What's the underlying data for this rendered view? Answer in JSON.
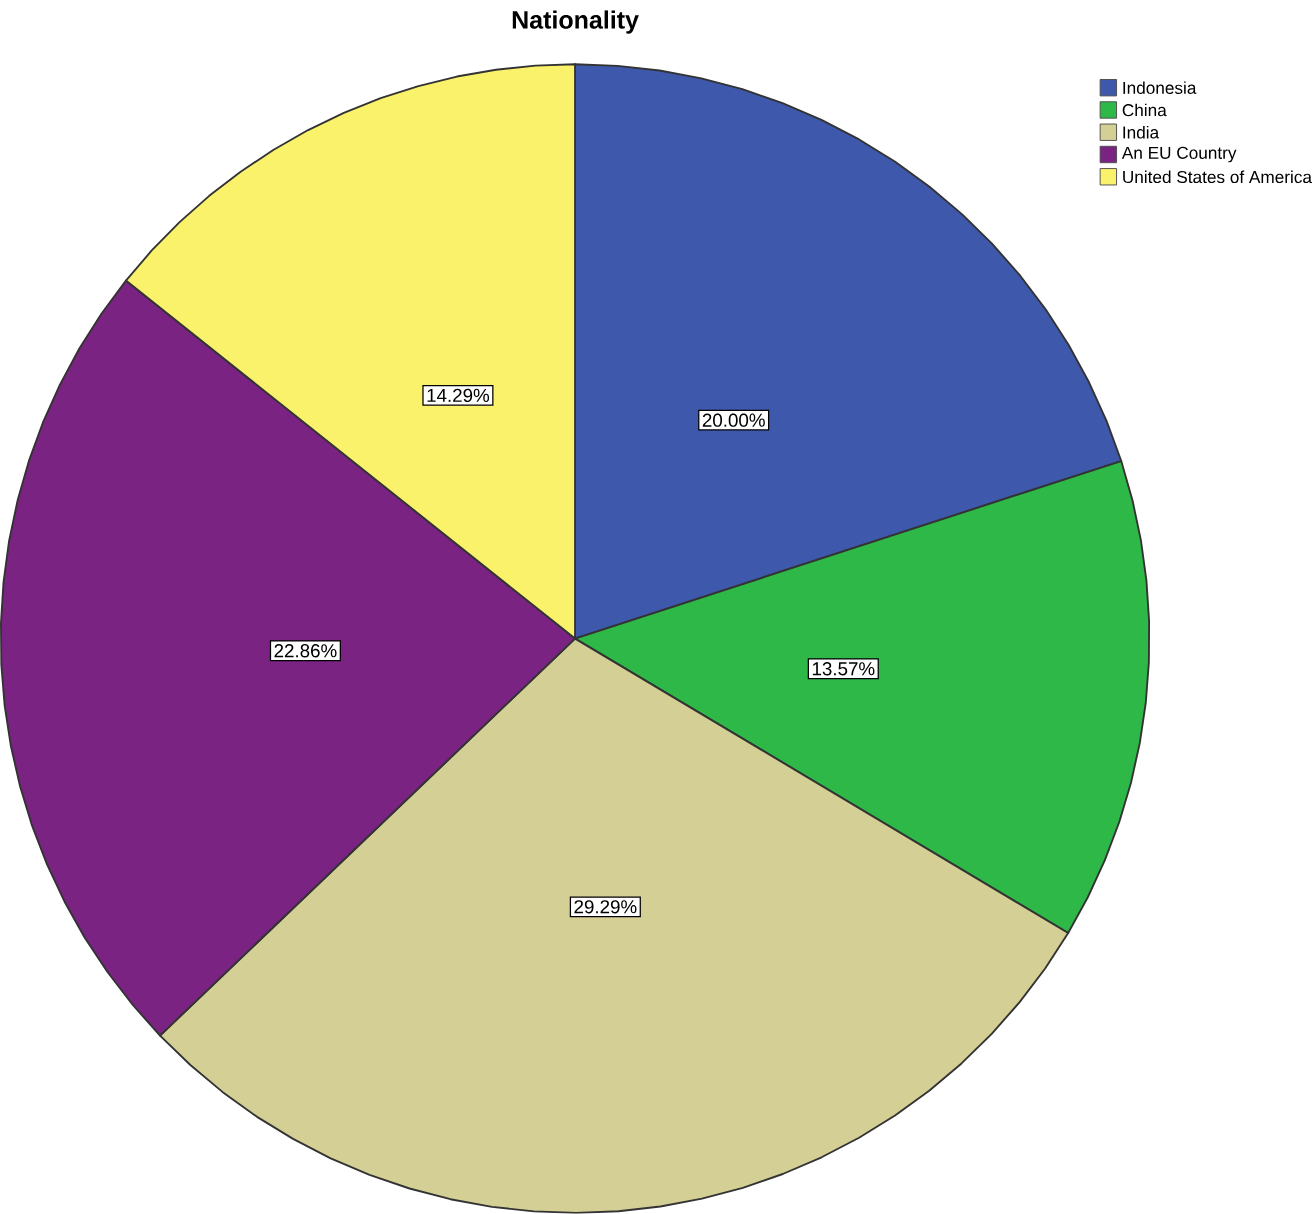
{
  "chart_data": {
    "type": "pie",
    "title": "Nationality",
    "categories": [
      "Indonesia",
      "China",
      "India",
      "An EU Country",
      "United States of America"
    ],
    "values": [
      20.0,
      13.57,
      29.29,
      22.86,
      14.29
    ],
    "value_labels": [
      "20.00%",
      "13.57%",
      "29.29%",
      "22.86%",
      "14.29%"
    ],
    "colors": [
      "#3e58ac",
      "#2eb848",
      "#d4cf95",
      "#7a2382",
      "#fbf26c"
    ],
    "legend": "top right"
  }
}
